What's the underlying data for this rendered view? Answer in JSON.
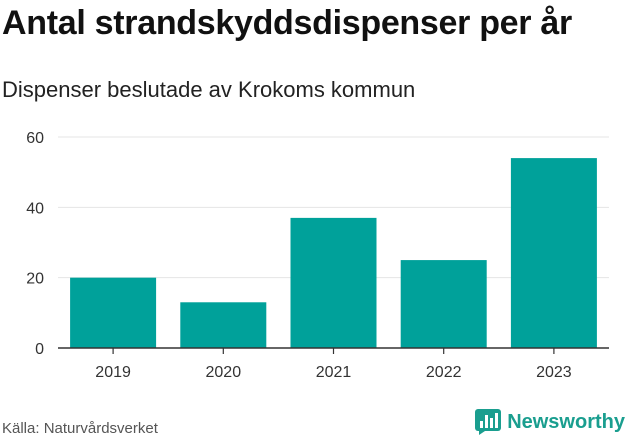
{
  "chart_data": {
    "type": "bar",
    "title": "Antal strandskyddsdispenser per år",
    "subtitle": "Dispenser beslutade av Krokoms kommun",
    "categories": [
      "2019",
      "2020",
      "2021",
      "2022",
      "2023"
    ],
    "values": [
      20,
      13,
      37,
      25,
      54
    ],
    "yticks": [
      0,
      20,
      40,
      60
    ],
    "ylim": [
      0,
      60
    ],
    "xlabel": "",
    "ylabel": "",
    "grid": true,
    "bar_color": "#00a19a",
    "grid_color": "#e5e5e5"
  },
  "footer": {
    "source": "Källa: Naturvårdsverket",
    "brand": "Newsworthy",
    "brand_color": "#1a9e8f",
    "brand_icon": "bar-chart-icon"
  }
}
